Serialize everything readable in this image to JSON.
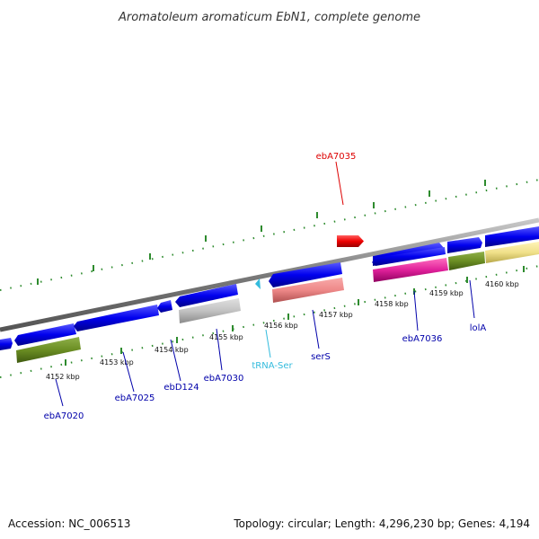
{
  "title": "Aromatoleum aromaticum EbN1, complete genome",
  "footer": {
    "accession": "Accession: NC_006513",
    "summary": "Topology: circular; Length: 4,296,230 bp; Genes: 4,194"
  },
  "colors": {
    "backbone": "#8a8a8a",
    "ticks": "#2e8b2e",
    "cds": "#0000ee",
    "highlight": "#ee0000",
    "rrna_pink": "#e0409a",
    "trna_cyan": "#33bbdd"
  },
  "scale_labels": [
    "4152 kbp",
    "4153 kbp",
    "4154 kbp",
    "4155 kbp",
    "4156 kbp",
    "4157 kbp",
    "4158 kbp",
    "4159 kbp",
    "4160 kbp"
  ],
  "gene_labels": {
    "ebA7035": "ebA7035",
    "ebA7020": "ebA7020",
    "ebA7025": "ebA7025",
    "ebD124": "ebD124",
    "ebA7030": "ebA7030",
    "tRNA_Ser": "tRNA-Ser",
    "serS": "serS",
    "ebA7036": "ebA7036",
    "lolA": "lolA"
  }
}
